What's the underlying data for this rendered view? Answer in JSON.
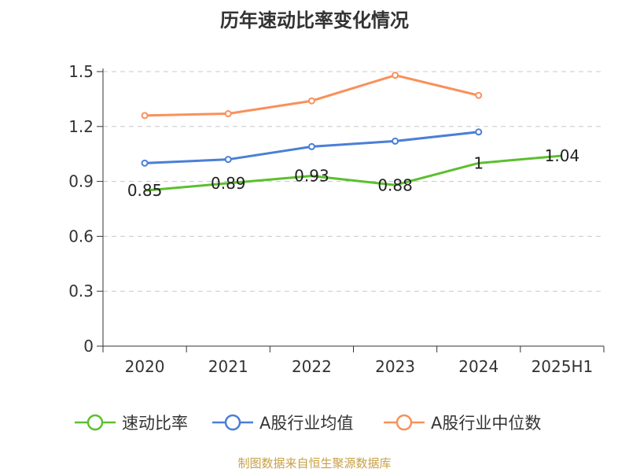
{
  "title": "历年速动比率变化情况",
  "source": "制图数据来自恒生聚源数据库",
  "chart_data": {
    "type": "line",
    "categories": [
      "2020",
      "2021",
      "2022",
      "2023",
      "2024",
      "2025H1"
    ],
    "ylim": [
      0,
      1.5
    ],
    "yticks": [
      "0",
      "0.3",
      "0.6",
      "0.9",
      "1.2",
      "1.5"
    ],
    "grid": true,
    "legend_position": "bottom",
    "series": [
      {
        "name": "速动比率",
        "color": "#5cbf2f",
        "values": [
          0.85,
          0.89,
          0.93,
          0.88,
          1.0,
          1.04
        ],
        "labels": [
          "0.85",
          "0.89",
          "0.93",
          "0.88",
          "1",
          "1.04"
        ]
      },
      {
        "name": "A股行业均值",
        "color": "#4a7fd6",
        "values": [
          1.0,
          1.02,
          1.09,
          1.12,
          1.17,
          null
        ]
      },
      {
        "name": "A股行业中位数",
        "color": "#f8915a",
        "values": [
          1.26,
          1.27,
          1.34,
          1.48,
          1.37,
          null
        ]
      }
    ]
  }
}
